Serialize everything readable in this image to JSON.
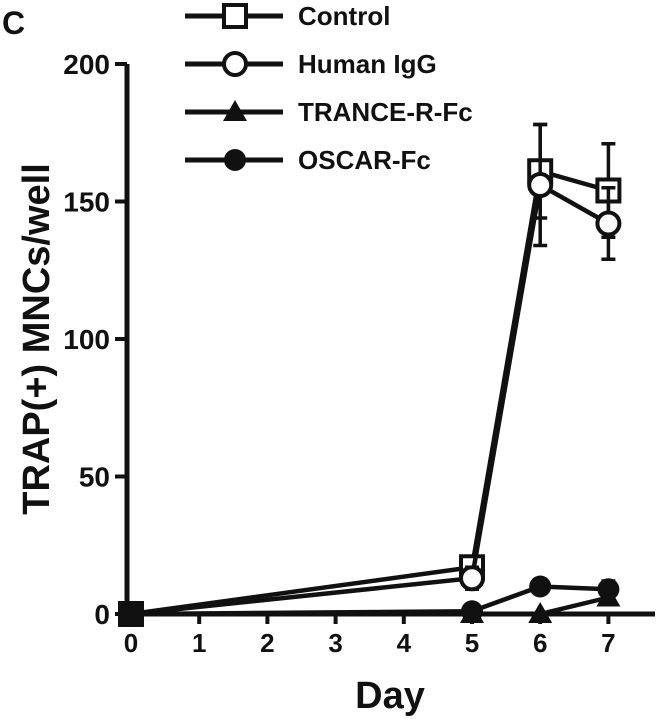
{
  "panel_label": "C",
  "chart_data": {
    "type": "line",
    "title": "",
    "xlabel": "Day",
    "ylabel": "TRAP(+) MNCs/well",
    "x_ticks": [
      "0",
      "1",
      "2",
      "3",
      "4",
      "5",
      "6",
      "7"
    ],
    "y_ticks": [
      "0",
      "50",
      "100",
      "150",
      "200"
    ],
    "xlim": [
      0,
      7.5
    ],
    "ylim": [
      0,
      200
    ],
    "grid": false,
    "legend_position": "top",
    "series": [
      {
        "name": "Control",
        "marker": "open-square",
        "x": [
          0,
          5,
          6,
          7
        ],
        "y": [
          0,
          17,
          161,
          154
        ],
        "err": [
          0,
          3,
          17,
          17
        ]
      },
      {
        "name": "Human IgG",
        "marker": "open-circle",
        "x": [
          0,
          5,
          6,
          7
        ],
        "y": [
          0,
          13,
          156,
          142
        ],
        "err": [
          0,
          4,
          22,
          13
        ]
      },
      {
        "name": "TRANCE-R-Fc",
        "marker": "filled-triangle",
        "x": [
          0,
          5,
          6,
          7
        ],
        "y": [
          0,
          0,
          0,
          6
        ],
        "err": [
          0,
          0,
          0,
          2
        ]
      },
      {
        "name": "OSCAR-Fc",
        "marker": "filled-circle",
        "x": [
          0,
          5,
          6,
          7
        ],
        "y": [
          0,
          1,
          10,
          9
        ],
        "err": [
          0,
          1,
          2,
          3
        ]
      }
    ]
  }
}
